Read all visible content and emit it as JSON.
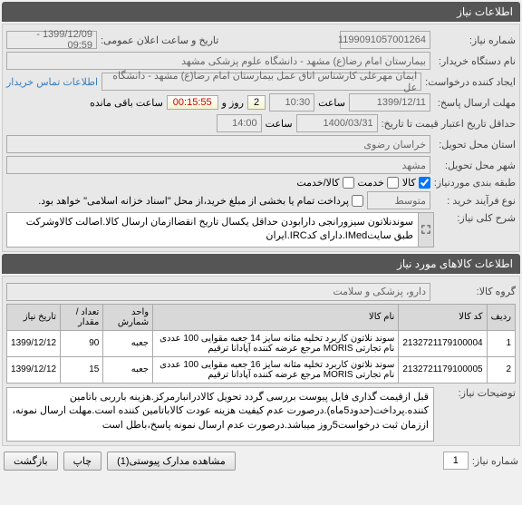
{
  "headers": {
    "need_info": "اطلاعات نیاز",
    "items_info": "اطلاعات کالاهای مورد نیاز"
  },
  "labels": {
    "need_no": "شماره نیاز:",
    "public_announce": "تاریخ و ساعت اعلان عمومی:",
    "buyer_org": "نام دستگاه خریدار:",
    "creator": "ایجاد کننده درخواست:",
    "buyer_contact": "اطلاعات تماس خریدار",
    "reply_deadline": "مهلت ارسال پاسخ:",
    "hour": "ساعت",
    "day_and": "روز و",
    "remaining": "ساعت باقی مانده",
    "min_validity_to": "حداقل تاریخ اعتبار قیمت تا تاریخ:",
    "delivery_province": "استان محل تحویل:",
    "delivery_city": "شهر محل تحویل:",
    "order_group": "طبقه بندی موردنیاز:",
    "goods": "کالا",
    "service": "خدمت",
    "goods_service": "کالا/خدمت",
    "purchase_type": "نوع فرآیند خرید :",
    "partial_pay_note": "پرداخت تمام یا بخشی از مبلغ خرید،از محل \"اسناد خزانه اسلامی\" خواهد بود.",
    "need_summary": "شرح کلی نیاز:",
    "goods_group": "گروه کالا:",
    "notes": "توضیحات نیاز:",
    "order_no": "شماره نیاز:",
    "attachments": "مشاهده مدارک پیوستی(",
    "attachments_close": ")",
    "print": "چاپ",
    "back": "بازگشت"
  },
  "values": {
    "need_no": "1199091057001264",
    "announce_datetime": "1399/12/09 - 09:59",
    "buyer_org": "بیمارستان امام رضا(ع) مشهد - دانشگاه علوم پزشکی مشهد",
    "creator": "ایمان مهرعلی کارشناس اتاق عمل بیمارستان امام رضا(ع) مشهد - دانشگاه عل",
    "reply_date": "1399/12/11",
    "reply_time": "10:30",
    "remaining_days": "2",
    "remaining_time": "00:15:55",
    "validity_date": "1400/03/31",
    "validity_time": "14:00",
    "province": "خراسان رضوی",
    "city": "مشهد",
    "purchase_type": "متوسط",
    "summary": "سوندنلاتون سیزورانجی\nدارابودن حداقل یکسال تاریخ انقضاازمان ارسال کالا.اصالت کالاوشرکت طبق سایتIMed.دارای کدIRC.ایران",
    "goods_group": "دارو، پزشکی و سلامت",
    "notes": "قبل ازقیمت گذاری فایل پیوست بررسی گردد\nتحویل کالادرانبارمرکز.هزینه بارربی باتامین کننده.پرداخت(حدود5ماه).درصورت عدم کیفیت هزینه عودت کالاباتامین کننده است.مهلت ارسال نمونه، اززمان ثبت درخواست5روز میباشد.درصورت عدم ارسال نمونه پاسخ،باطل است",
    "attachments_count": "1"
  },
  "checkboxes": {
    "goods": true,
    "service": false,
    "goods_service": false,
    "partial_pay": false
  },
  "table": {
    "columns": [
      "ردیف",
      "کد کالا",
      "نام کالا",
      "واحد شمارش",
      "تعداد / مقدار",
      "تاریخ نیاز"
    ],
    "rows": [
      [
        "1",
        "2132721179100004",
        "سوند نلاتون کاربرد تخلیه مثانه سایز 14 جعبه مقوایی 100 عددی نام تجارتی MORIS مرجع عرضه کننده آپادانا ترقیم",
        "جعبه",
        "90",
        "1399/12/12"
      ],
      [
        "2",
        "2132721179100005",
        "سوند نلاتون کاربرد تخلیه مثانه سایز 16 جعبه مقوایی 100 عددی نام تجارتی MORIS مرجع عرضه کننده آپادانا ترقیم",
        "جعبه",
        "15",
        "1399/12/12"
      ]
    ]
  },
  "paging": {
    "current": "1"
  },
  "colors": {
    "header_bg": "#555555",
    "section_bg": "#e8e8e8",
    "field_bg": "#ffffff",
    "disabled_bg": "#eaeaea",
    "link": "#3a7cb8",
    "countdown_red": "#cc0000"
  }
}
